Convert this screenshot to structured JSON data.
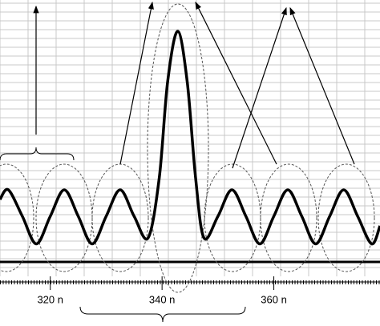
{
  "chart_data": {
    "type": "line",
    "x": [
      311,
      312.5,
      315,
      317.5,
      320,
      322.5,
      325,
      327.5,
      330,
      332.5,
      335,
      337.5,
      339.5,
      341,
      342.8,
      344.5,
      346,
      347.5,
      350,
      352.5,
      355,
      357.5,
      360,
      362.5,
      365,
      367.5,
      370,
      372.5,
      375,
      377.5,
      379
    ],
    "series": [
      {
        "color": "#000000",
        "values": [
          2.6,
          3.0,
          1.9,
          0.75,
          1.9,
          3.0,
          1.9,
          0.75,
          1.9,
          3.0,
          1.9,
          1.0,
          3.5,
          7.5,
          9.6,
          7.5,
          3.5,
          1.0,
          1.9,
          3.0,
          1.9,
          0.75,
          1.9,
          3.0,
          1.9,
          0.75,
          1.9,
          3.0,
          1.9,
          0.75,
          1.5
        ]
      }
    ],
    "xlim": [
      311,
      379
    ],
    "ylim": [
      0,
      10
    ],
    "xticks": [
      {
        "value": 320,
        "label": "320 n"
      },
      {
        "value": 340,
        "label": "340 n"
      },
      {
        "value": 360,
        "label": "360 n"
      }
    ],
    "grid": true
  }
}
